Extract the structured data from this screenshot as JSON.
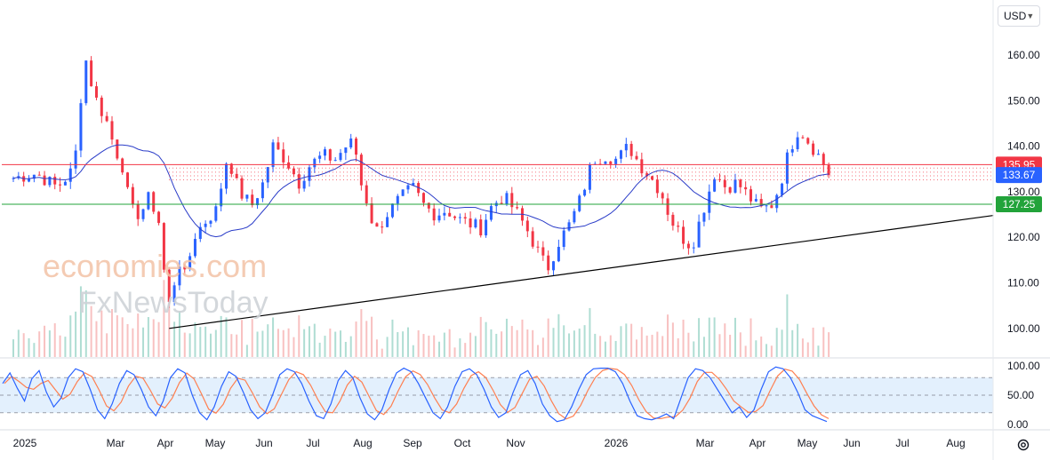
{
  "currency": "USD",
  "watermark": {
    "line1": "economies.com",
    "line2": "FxNewsToday"
  },
  "colors": {
    "bull": "#2962ff",
    "bear": "#f23645",
    "ma": "#2a3cc8",
    "resistance": "#f23645",
    "support": "#22a33a",
    "trendline": "#000000",
    "stoch_k": "#2962ff",
    "stoch_d": "#ff7f50",
    "stoch_band": "#e3f0fd"
  },
  "chart_data": [
    {
      "type": "candlestick",
      "name": "price",
      "y_ticks": [
        "160.00",
        "150.00",
        "140.00",
        "130.00",
        "120.00",
        "110.00",
        "100.00"
      ],
      "ylim": [
        95,
        168
      ],
      "x_labels": [
        "2025",
        "Mar",
        "Apr",
        "May",
        "Jun",
        "Jul",
        "Aug",
        "Sep",
        "Oct",
        "Nov",
        "2026",
        "Mar",
        "Apr",
        "May",
        "Jun",
        "Jul",
        "Aug"
      ],
      "last_price": "133.67",
      "horizontal_levels": [
        {
          "label": "135.95",
          "value": 135.95,
          "style": "solid",
          "color": "#f23645"
        },
        {
          "label": "127.25",
          "value": 127.25,
          "style": "solid",
          "color": "#22a33a"
        }
      ],
      "dotted_levels": [
        135.2,
        134.3,
        133.5,
        132.6
      ],
      "trendline": {
        "from": {
          "date": "2025-04-07",
          "value": 100.0
        },
        "to": {
          "date": "2026-08-28",
          "value": 124.8
        }
      },
      "path": [
        [
          "2025-01-01",
          133
        ],
        [
          "2025-01-15",
          134
        ],
        [
          "2025-01-28",
          131
        ],
        [
          "2025-02-05",
          134
        ],
        [
          "2025-02-08",
          137
        ],
        [
          "2025-02-14",
          160
        ],
        [
          "2025-02-20",
          151
        ],
        [
          "2025-02-28",
          145
        ],
        [
          "2025-03-04",
          140
        ],
        [
          "2025-03-10",
          135
        ],
        [
          "2025-03-14",
          126
        ],
        [
          "2025-03-20",
          125
        ],
        [
          "2025-03-26",
          129
        ],
        [
          "2025-04-01",
          123
        ],
        [
          "2025-04-04",
          112
        ],
        [
          "2025-04-08",
          103
        ],
        [
          "2025-04-12",
          116
        ],
        [
          "2025-04-17",
          111
        ],
        [
          "2025-04-22",
          120
        ],
        [
          "2025-04-28",
          123
        ],
        [
          "2025-05-06",
          126
        ],
        [
          "2025-05-13",
          138
        ],
        [
          "2025-05-20",
          130
        ],
        [
          "2025-05-28",
          127
        ],
        [
          "2025-06-04",
          132
        ],
        [
          "2025-06-10",
          140
        ],
        [
          "2025-06-18",
          137
        ],
        [
          "2025-06-26",
          132
        ],
        [
          "2025-07-03",
          136
        ],
        [
          "2025-07-11",
          138
        ],
        [
          "2025-07-18",
          137
        ],
        [
          "2025-07-25",
          140
        ],
        [
          "2025-07-30",
          141
        ],
        [
          "2025-08-03",
          132
        ],
        [
          "2025-08-06",
          129
        ],
        [
          "2025-08-12",
          121
        ],
        [
          "2025-08-19",
          125
        ],
        [
          "2025-08-26",
          128
        ],
        [
          "2025-09-04",
          131
        ],
        [
          "2025-09-11",
          127
        ],
        [
          "2025-09-18",
          125
        ],
        [
          "2025-09-25",
          126
        ],
        [
          "2025-10-02",
          124
        ],
        [
          "2025-10-09",
          123
        ],
        [
          "2025-10-16",
          122
        ],
        [
          "2025-10-23",
          127
        ],
        [
          "2025-10-30",
          129
        ],
        [
          "2025-11-06",
          126
        ],
        [
          "2025-11-13",
          122
        ],
        [
          "2025-11-20",
          117
        ],
        [
          "2025-11-26",
          113
        ],
        [
          "2025-12-03",
          119
        ],
        [
          "2025-12-10",
          123
        ],
        [
          "2025-12-17",
          129
        ],
        [
          "2025-12-24",
          137
        ],
        [
          "2026-01-01",
          138
        ],
        [
          "2026-01-08",
          137
        ],
        [
          "2026-01-15",
          140
        ],
        [
          "2026-01-22",
          136
        ],
        [
          "2026-01-29",
          133
        ],
        [
          "2026-02-04",
          130
        ],
        [
          "2026-02-10",
          124
        ],
        [
          "2026-02-17",
          120
        ],
        [
          "2026-02-23",
          118
        ],
        [
          "2026-03-02",
          126
        ],
        [
          "2026-03-09",
          134
        ],
        [
          "2026-03-16",
          131
        ],
        [
          "2026-03-23",
          132
        ],
        [
          "2026-03-30",
          129
        ],
        [
          "2026-04-06",
          126
        ],
        [
          "2026-04-13",
          127
        ],
        [
          "2026-04-18",
          131
        ],
        [
          "2026-04-24",
          139
        ],
        [
          "2026-04-30",
          144
        ],
        [
          "2026-05-06",
          141
        ],
        [
          "2026-05-12",
          138
        ],
        [
          "2026-05-19",
          133.67
        ]
      ]
    },
    {
      "type": "line",
      "name": "stochastic",
      "y_ticks": [
        "100.00",
        "50.00",
        "0.00"
      ],
      "ylim": [
        0,
        100
      ],
      "band": [
        20,
        80
      ],
      "mid": 50,
      "k_values": [
        70,
        88,
        62,
        40,
        78,
        92,
        55,
        30,
        45,
        80,
        95,
        90,
        60,
        25,
        10,
        35,
        70,
        92,
        85,
        60,
        30,
        15,
        40,
        80,
        95,
        88,
        50,
        20,
        8,
        30,
        65,
        90,
        82,
        55,
        25,
        10,
        20,
        50,
        85,
        95,
        90,
        70,
        40,
        15,
        10,
        35,
        75,
        92,
        80,
        45,
        18,
        8,
        25,
        60,
        88,
        96,
        90,
        70,
        45,
        20,
        10,
        30,
        65,
        90,
        95,
        85,
        60,
        30,
        12,
        20,
        55,
        85,
        92,
        70,
        35,
        15,
        5,
        8,
        30,
        60,
        85,
        95,
        96,
        96,
        90,
        70,
        40,
        15,
        10,
        8,
        12,
        18,
        10,
        45,
        80,
        95,
        92,
        80,
        60,
        40,
        20,
        30,
        12,
        25,
        60,
        90,
        98,
        95,
        80,
        55,
        25,
        15,
        10,
        5
      ]
    }
  ]
}
